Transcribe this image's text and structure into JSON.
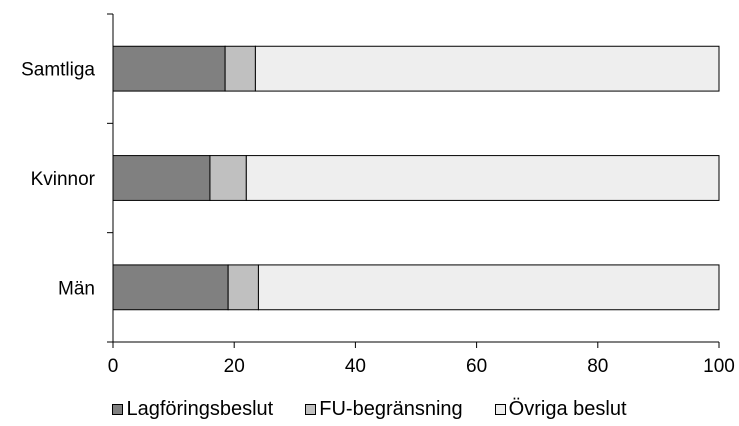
{
  "chart_data": {
    "type": "bar",
    "orientation": "horizontal",
    "stacked": true,
    "categories": [
      "Samtliga",
      "Kvinnor",
      "Män"
    ],
    "series": [
      {
        "name": "Lagföringsbeslut",
        "values": [
          18.5,
          16,
          19
        ],
        "color": "#808080"
      },
      {
        "name": "FU-begränsning",
        "values": [
          5,
          6,
          5
        ],
        "color": "#c0c0c0"
      },
      {
        "name": "Övriga beslut",
        "values": [
          76.5,
          78,
          76
        ],
        "color": "#eeeeee"
      }
    ],
    "xlim": [
      0,
      100
    ],
    "x_ticks": [
      0,
      20,
      40,
      60,
      80,
      100
    ],
    "x_tick_labels": [
      "0",
      "20",
      "40",
      "60",
      "80",
      "100"
    ],
    "title": "",
    "xlabel": "",
    "ylabel": "",
    "grid": false,
    "legend_position": "bottom"
  }
}
